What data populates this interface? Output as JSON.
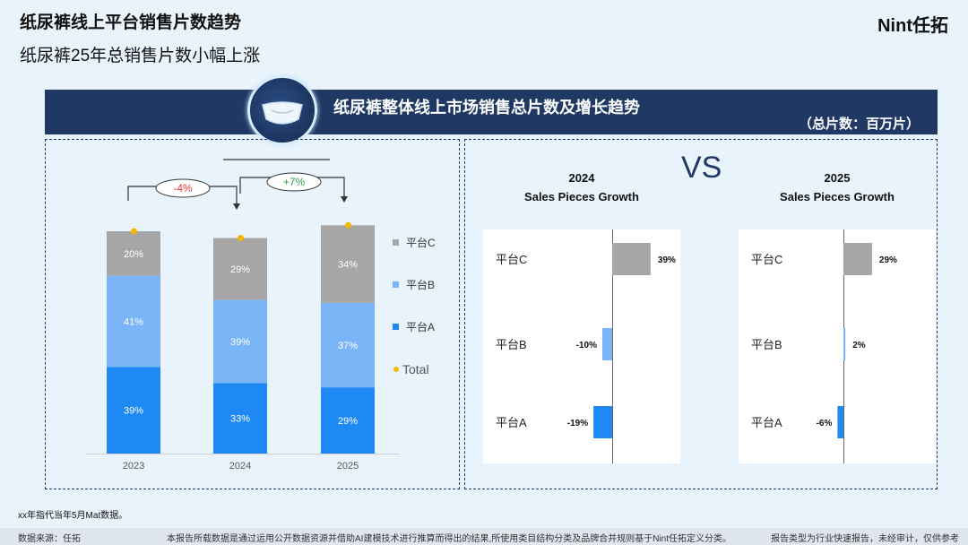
{
  "header": {
    "title": "纸尿裤线上平台销售片数趋势",
    "subtitle": "纸尿裤25年总销售片数小幅上涨",
    "logo": "Nint任拓"
  },
  "banner": {
    "title": "纸尿裤整体线上市场销售总片数及增长趋势",
    "unit": "（总片数：百万片）"
  },
  "vs_label": "VS",
  "footnote": "xx年指代当年5月Mat数据。",
  "footer": {
    "source": "数据来源：任拓",
    "disclaimer": "本报告所载数据是通过运用公开数据资源并借助AI建模技术进行推算而得出的结果,所使用类目结构分类及品牌合并规则基于Nint任拓定义分类。",
    "type": "报告类型为行业快速报告，未经审计，仅供参考"
  },
  "colors": {
    "platform_a": "#1e88f5",
    "platform_b": "#7ab6f7",
    "platform_c": "#a6a6a6",
    "total_dot": "#f5b800",
    "navy": "#1f3864",
    "negative": "#e53935",
    "positive": "#2e9d4a"
  },
  "chart_data": [
    {
      "type": "bar",
      "stacked": true,
      "categories": [
        "2023",
        "2024",
        "2025"
      ],
      "series": [
        {
          "name": "平台A",
          "values": [
            39,
            33,
            29
          ],
          "labels": [
            "39%",
            "33%",
            "29%"
          ]
        },
        {
          "name": "平台B",
          "values": [
            41,
            39,
            37
          ],
          "labels": [
            "41%",
            "39%",
            "37%"
          ]
        },
        {
          "name": "平台C",
          "values": [
            20,
            29,
            34
          ],
          "labels": [
            "20%",
            "29%",
            "34%"
          ]
        }
      ],
      "total_series": {
        "name": "Total",
        "relative_totals": [
          100,
          96,
          102.7
        ]
      },
      "growth_annotations": [
        {
          "from": "2023",
          "to": "2024",
          "label": "-4%",
          "sign": "negative"
        },
        {
          "from": "2024",
          "to": "2025",
          "label": "+7%",
          "sign": "positive"
        }
      ],
      "legend": [
        "平台C",
        "平台B",
        "平台A",
        "Total"
      ],
      "legend_position": "right"
    },
    {
      "type": "bar",
      "orientation": "horizontal",
      "title": "2024",
      "subtitle": "Sales Pieces Growth",
      "categories": [
        "平台C",
        "平台B",
        "平台A"
      ],
      "values": [
        39,
        -10,
        -19
      ],
      "labels": [
        "39%",
        "-10%",
        "-19%"
      ],
      "xlim": [
        -50,
        50
      ]
    },
    {
      "type": "bar",
      "orientation": "horizontal",
      "title": "2025",
      "subtitle": "Sales Pieces Growth",
      "categories": [
        "平台C",
        "平台B",
        "平台A"
      ],
      "values": [
        29,
        2,
        -6
      ],
      "labels": [
        "29%",
        "2%",
        "-6%"
      ],
      "xlim": [
        -50,
        50
      ]
    }
  ]
}
